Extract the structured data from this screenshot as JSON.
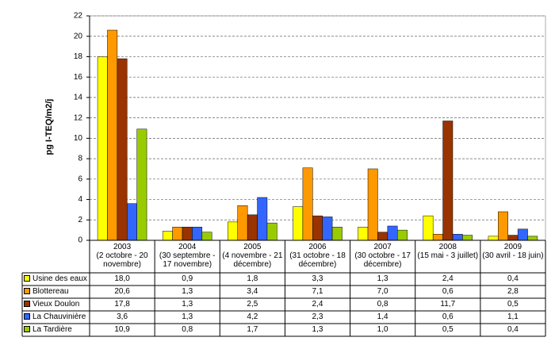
{
  "chart_data": {
    "type": "bar",
    "y_label": "pg I-TEQ/m2/j",
    "categories": [
      "2003\n(2 octobre - 20 novembre)",
      "2004\n(30 septembre - 17 novembre)",
      "2005\n(4 novembre - 21 décembre)",
      "2006\n(31 octobre - 18 décembre)",
      "2007\n(30 octobre - 17 décembre)",
      "2008\n(15 mai - 3 juillet)",
      "2009\n(30 avril - 18 juin)"
    ],
    "series": [
      {
        "name": "Usine des eaux",
        "color": "#ffff00",
        "values": [
          18.0,
          0.9,
          1.8,
          3.3,
          1.3,
          2.4,
          0.4
        ],
        "value_labels": [
          "18,0",
          "0,9",
          "1,8",
          "3,3",
          "1,3",
          "2,4",
          "0,4"
        ]
      },
      {
        "name": "Blottereau",
        "color": "#ff9900",
        "values": [
          20.6,
          1.3,
          3.4,
          7.1,
          7.0,
          0.6,
          2.8
        ],
        "value_labels": [
          "20,6",
          "1,3",
          "3,4",
          "7,1",
          "7,0",
          "0,6",
          "2,8"
        ]
      },
      {
        "name": "Vieux Doulon",
        "color": "#993300",
        "values": [
          17.8,
          1.3,
          2.5,
          2.4,
          0.8,
          11.7,
          0.5
        ],
        "value_labels": [
          "17,8",
          "1,3",
          "2,5",
          "2,4",
          "0,8",
          "11,7",
          "0,5"
        ]
      },
      {
        "name": "La Chauvinière",
        "color": "#3366ff",
        "values": [
          3.6,
          1.3,
          4.2,
          2.3,
          1.4,
          0.6,
          1.1
        ],
        "value_labels": [
          "3,6",
          "1,3",
          "4,2",
          "2,3",
          "1,4",
          "0,6",
          "1,1"
        ]
      },
      {
        "name": "La Tardière",
        "color": "#99cc00",
        "values": [
          10.9,
          0.8,
          1.7,
          1.3,
          1.0,
          0.5,
          0.4
        ],
        "value_labels": [
          "10,9",
          "0,8",
          "1,7",
          "1,3",
          "1,0",
          "0,5",
          "0,4"
        ]
      }
    ],
    "ylim": [
      0,
      22
    ],
    "yticks": [
      0,
      2,
      4,
      6,
      8,
      10,
      12,
      14,
      16,
      18,
      20,
      22
    ],
    "grid": true
  }
}
